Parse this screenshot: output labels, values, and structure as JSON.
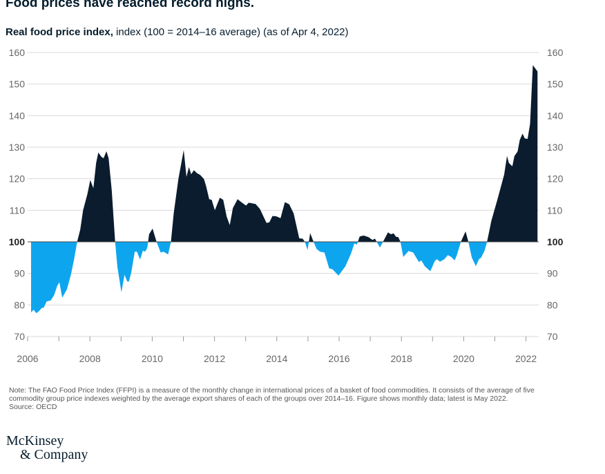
{
  "title": "Food prices have reached record highs.",
  "subtitle_bold": "Real food price index,",
  "subtitle_rest": " index (100 = 2014–16 average) (as of Apr 4, 2022)",
  "note": "Note: The FAO Food Price Index (FFPI) is a measure of the monthly change in international prices of a basket of food commodities. It consists of the average of five commodity group price indexes weighted by the average export shares of each of the groups over 2014–16. Figure shows monthly data; latest is May 2022.",
  "source": "Source: OECD",
  "logo": [
    "McKinsey",
    "& Company"
  ],
  "colors": {
    "above": "#0b1c2e",
    "below": "#0ea5ef",
    "grid": "#d9d9d9",
    "axis_text": "#666"
  },
  "chart_data": {
    "type": "area",
    "title": "Real food price index",
    "xlabel": "",
    "ylabel": "index (100 = 2014–16 average)",
    "baseline": 100,
    "ylim": [
      70,
      160
    ],
    "xlim": [
      2006,
      2022.5
    ],
    "yticks": [
      70,
      80,
      90,
      100,
      110,
      120,
      130,
      140,
      150,
      160
    ],
    "xticks": [
      2006,
      2008,
      2010,
      2012,
      2014,
      2016,
      2018,
      2020,
      2022
    ],
    "grid": true,
    "x": [
      2006.11,
      2006.19,
      2006.28,
      2006.36,
      2006.45,
      2006.52,
      2006.61,
      2006.74,
      2006.85,
      2006.95,
      2007.02,
      2007.11,
      2007.26,
      2007.39,
      2007.49,
      2007.59,
      2007.69,
      2007.78,
      2007.92,
      2008.01,
      2008.11,
      2008.2,
      2008.27,
      2008.37,
      2008.44,
      2008.53,
      2008.6,
      2008.7,
      2008.81,
      2008.88,
      2009.01,
      2009.11,
      2009.2,
      2009.25,
      2009.33,
      2009.44,
      2009.51,
      2009.61,
      2009.7,
      2009.77,
      2009.84,
      2009.9,
      2010.01,
      2010.14,
      2010.27,
      2010.36,
      2010.51,
      2010.6,
      2010.69,
      2010.84,
      2011.01,
      2011.1,
      2011.18,
      2011.25,
      2011.34,
      2011.43,
      2011.54,
      2011.66,
      2011.73,
      2011.83,
      2011.91,
      2012.01,
      2012.17,
      2012.28,
      2012.39,
      2012.49,
      2012.59,
      2012.74,
      2012.87,
      2013.01,
      2013.1,
      2013.32,
      2013.46,
      2013.67,
      2013.76,
      2013.86,
      2013.98,
      2014.12,
      2014.26,
      2014.4,
      2014.54,
      2014.72,
      2014.83,
      2014.9,
      2014.99,
      2015.07,
      2015.18,
      2015.28,
      2015.39,
      2015.53,
      2015.68,
      2015.79,
      2015.98,
      2016.2,
      2016.38,
      2016.49,
      2016.57,
      2016.66,
      2016.79,
      2016.94,
      2017.07,
      2017.15,
      2017.31,
      2017.42,
      2017.57,
      2017.66,
      2017.75,
      2017.83,
      2017.9,
      2017.97,
      2018.06,
      2018.23,
      2018.38,
      2018.56,
      2018.64,
      2018.75,
      2018.93,
      2019.07,
      2019.14,
      2019.24,
      2019.38,
      2019.49,
      2019.6,
      2019.71,
      2019.78,
      2019.91,
      2020.06,
      2020.15,
      2020.26,
      2020.39,
      2020.49,
      2020.56,
      2020.67,
      2020.75,
      2020.89,
      2021.08,
      2021.3,
      2021.39,
      2021.45,
      2021.56,
      2021.63,
      2021.73,
      2021.8,
      2021.89,
      2021.96,
      2022.05,
      2022.13,
      2022.22,
      2022.37
    ],
    "y": [
      77.6,
      78.5,
      77.4,
      78,
      79,
      79.2,
      81.1,
      81.4,
      83.1,
      86,
      87.2,
      82.3,
      84.9,
      89.6,
      94.4,
      100,
      103.9,
      110,
      115.2,
      119.6,
      117,
      125,
      128.3,
      126.9,
      126.5,
      128.7,
      126.5,
      116.3,
      100,
      92.2,
      84,
      89.6,
      87.4,
      87.4,
      90.4,
      96.9,
      96.9,
      94.4,
      97.2,
      96.9,
      98,
      102.4,
      104.2,
      100,
      96.6,
      96.9,
      96,
      100,
      109,
      119.9,
      129.1,
      120.6,
      123.7,
      121.4,
      122.7,
      121.8,
      121.2,
      119.9,
      117.7,
      113.5,
      113.3,
      110,
      114,
      113.3,
      108,
      105.3,
      110.7,
      113.5,
      112.5,
      111.5,
      112.4,
      112,
      110.4,
      106,
      106.2,
      108.2,
      108.1,
      107.5,
      112.6,
      111.9,
      109,
      101.1,
      101,
      100,
      97.4,
      102.8,
      100,
      97.7,
      96.9,
      96.6,
      91.6,
      91.3,
      89.3,
      92.2,
      96.2,
      99.5,
      99.1,
      101.7,
      102,
      101.5,
      100.6,
      101,
      98.2,
      100.2,
      103,
      102.4,
      102.7,
      101.6,
      101.5,
      100,
      95.2,
      97.1,
      96.6,
      93.6,
      94.1,
      92.3,
      90.7,
      93.9,
      94.5,
      93.7,
      94.5,
      95.8,
      95.2,
      94.1,
      95.8,
      100,
      103.3,
      100,
      95,
      92.3,
      94.5,
      95,
      97.2,
      100,
      106.7,
      113.3,
      121.3,
      127.2,
      125,
      123.9,
      127.2,
      128.6,
      132.3,
      134.3,
      132.8,
      132.6,
      137.4,
      156,
      154
    ]
  }
}
